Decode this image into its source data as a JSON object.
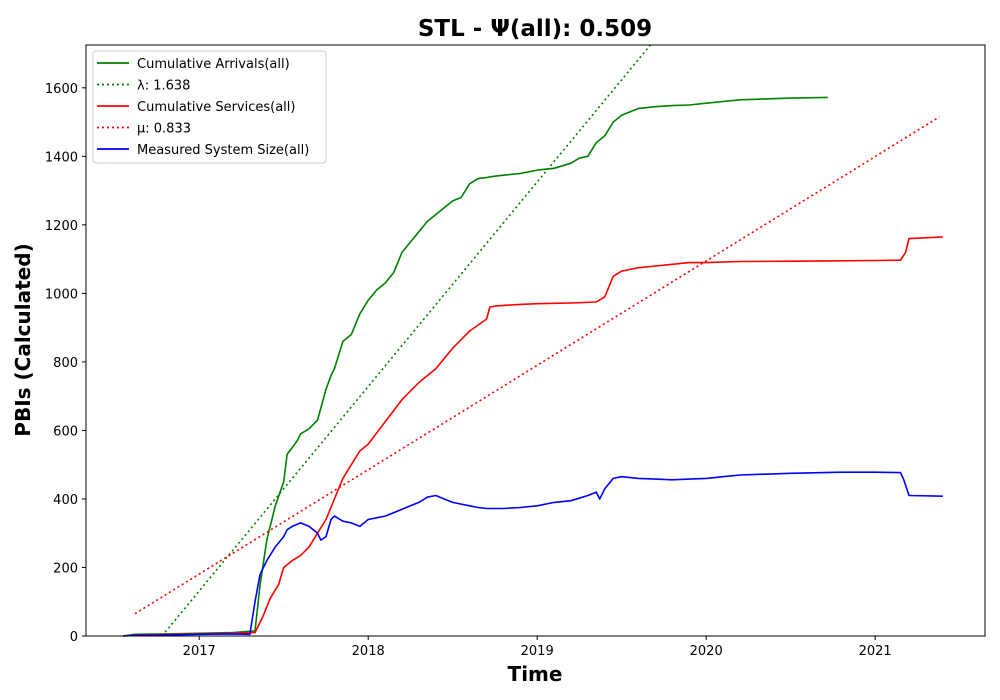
{
  "chart_data": {
    "type": "line",
    "title": "STL -  Ψ(all): 0.509",
    "xlabel": "Time",
    "ylabel": "PBIs (Calculated)",
    "xlim": [
      2016.33,
      2021.65
    ],
    "ylim": [
      0,
      1725
    ],
    "x_ticks": [
      2017,
      2018,
      2019,
      2020,
      2021
    ],
    "x_tick_labels": [
      "2017",
      "2018",
      "2019",
      "2020",
      "2021"
    ],
    "y_ticks": [
      0,
      200,
      400,
      600,
      800,
      1000,
      1200,
      1400,
      1600
    ],
    "y_tick_labels": [
      "0",
      "200",
      "400",
      "600",
      "800",
      "1000",
      "1200",
      "1400",
      "1600"
    ],
    "grid": false,
    "legend_position": "top-left",
    "series": [
      {
        "name": "Cumulative Arrivals(all)",
        "color": "#008000",
        "style": "solid",
        "x": [
          2016.55,
          2016.62,
          2016.8,
          2017.0,
          2017.2,
          2017.33,
          2017.36,
          2017.4,
          2017.45,
          2017.5,
          2017.52,
          2017.55,
          2017.58,
          2017.6,
          2017.65,
          2017.7,
          2017.75,
          2017.78,
          2017.8,
          2017.85,
          2017.9,
          2017.95,
          2018.0,
          2018.05,
          2018.1,
          2018.15,
          2018.2,
          2018.25,
          2018.3,
          2018.35,
          2018.4,
          2018.45,
          2018.5,
          2018.55,
          2018.6,
          2018.65,
          2018.7,
          2018.72,
          2018.75,
          2018.8,
          2018.9,
          2019.0,
          2019.1,
          2019.2,
          2019.25,
          2019.3,
          2019.35,
          2019.4,
          2019.45,
          2019.5,
          2019.55,
          2019.6,
          2019.7,
          2019.8,
          2019.9,
          2020.0,
          2020.1,
          2020.2,
          2020.5,
          2020.72
        ],
        "y": [
          0,
          5,
          6,
          8,
          10,
          15,
          150,
          280,
          380,
          450,
          530,
          550,
          570,
          590,
          605,
          630,
          720,
          760,
          780,
          860,
          880,
          940,
          980,
          1010,
          1030,
          1060,
          1120,
          1150,
          1180,
          1210,
          1230,
          1250,
          1270,
          1280,
          1320,
          1335,
          1338,
          1340,
          1342,
          1345,
          1350,
          1360,
          1365,
          1380,
          1395,
          1400,
          1440,
          1460,
          1500,
          1520,
          1530,
          1540,
          1545,
          1548,
          1550,
          1555,
          1560,
          1565,
          1570,
          1572
        ]
      },
      {
        "name": "λ: 1.638",
        "color": "#008000",
        "style": "dotted",
        "x": [
          2016.78,
          2019.67
        ],
        "y": [
          0,
          1725
        ]
      },
      {
        "name": "Cumulative Services(all)",
        "color": "#ff0000",
        "style": "solid",
        "x": [
          2016.55,
          2016.62,
          2016.8,
          2017.0,
          2017.2,
          2017.33,
          2017.38,
          2017.42,
          2017.47,
          2017.5,
          2017.55,
          2017.6,
          2017.65,
          2017.7,
          2017.75,
          2017.8,
          2017.85,
          2017.9,
          2017.95,
          2018.0,
          2018.1,
          2018.2,
          2018.3,
          2018.4,
          2018.5,
          2018.6,
          2018.7,
          2018.72,
          2018.75,
          2018.8,
          2018.9,
          2019.0,
          2019.1,
          2019.2,
          2019.35,
          2019.4,
          2019.45,
          2019.5,
          2019.6,
          2019.7,
          2019.8,
          2019.9,
          2020.0,
          2020.2,
          2020.5,
          2020.8,
          2021.0,
          2021.15,
          2021.18,
          2021.2,
          2021.4
        ],
        "y": [
          0,
          3,
          4,
          6,
          8,
          10,
          60,
          110,
          150,
          200,
          220,
          235,
          260,
          300,
          340,
          400,
          460,
          500,
          540,
          560,
          625,
          690,
          740,
          780,
          840,
          890,
          925,
          960,
          963,
          965,
          968,
          970,
          971,
          972,
          975,
          990,
          1050,
          1065,
          1075,
          1080,
          1085,
          1090,
          1090,
          1093,
          1094,
          1095,
          1096,
          1097,
          1120,
          1160,
          1165
        ]
      },
      {
        "name": "μ: 0.833",
        "color": "#ff0000",
        "style": "dotted",
        "x": [
          2016.62,
          2021.38
        ],
        "y": [
          65,
          1515
        ]
      },
      {
        "name": "Measured System Size(all)",
        "color": "#0000ff",
        "style": "solid",
        "x": [
          2016.55,
          2016.62,
          2016.8,
          2017.0,
          2017.2,
          2017.3,
          2017.33,
          2017.36,
          2017.4,
          2017.45,
          2017.5,
          2017.52,
          2017.55,
          2017.6,
          2017.65,
          2017.7,
          2017.72,
          2017.75,
          2017.78,
          2017.8,
          2017.85,
          2017.9,
          2017.95,
          2018.0,
          2018.05,
          2018.1,
          2018.15,
          2018.2,
          2018.25,
          2018.3,
          2018.35,
          2018.4,
          2018.45,
          2018.5,
          2018.55,
          2018.6,
          2018.65,
          2018.7,
          2018.8,
          2018.9,
          2019.0,
          2019.1,
          2019.2,
          2019.3,
          2019.35,
          2019.37,
          2019.4,
          2019.45,
          2019.5,
          2019.6,
          2019.7,
          2019.8,
          2019.9,
          2020.0,
          2020.1,
          2020.2,
          2020.5,
          2020.8,
          2021.0,
          2021.15,
          2021.17,
          2021.2,
          2021.4
        ],
        "y": [
          0,
          2,
          3,
          5,
          6,
          5,
          100,
          180,
          220,
          260,
          290,
          310,
          320,
          330,
          320,
          300,
          280,
          290,
          340,
          350,
          335,
          330,
          320,
          340,
          345,
          350,
          360,
          370,
          380,
          390,
          405,
          410,
          400,
          390,
          385,
          380,
          375,
          372,
          372,
          375,
          380,
          390,
          395,
          410,
          420,
          400,
          430,
          460,
          465,
          460,
          458,
          456,
          458,
          460,
          465,
          470,
          475,
          478,
          478,
          477,
          455,
          410,
          408
        ]
      }
    ]
  }
}
